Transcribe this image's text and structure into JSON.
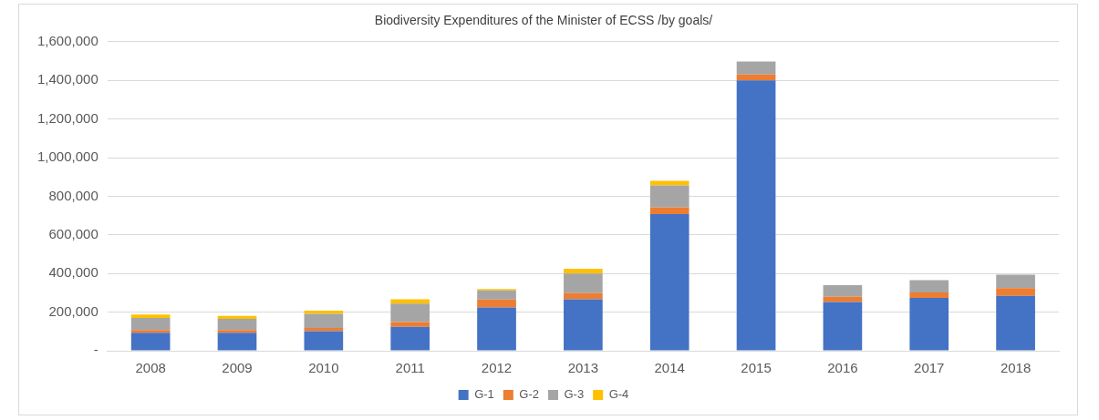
{
  "chart_data": {
    "type": "bar",
    "title": "Biodiversity Expenditures of the Minister of ECSS /by goals/",
    "categories": [
      "2008",
      "2009",
      "2010",
      "2011",
      "2012",
      "2013",
      "2014",
      "2015",
      "2016",
      "2017",
      "2018"
    ],
    "stacked": true,
    "series": [
      {
        "name": "G-1",
        "color": "#4472c4",
        "values": [
          93000,
          93000,
          102000,
          124000,
          224000,
          266000,
          708000,
          1400000,
          252000,
          274000,
          284000
        ]
      },
      {
        "name": "G-2",
        "color": "#ed7d31",
        "values": [
          14000,
          14000,
          16000,
          24000,
          41000,
          32000,
          34000,
          30000,
          28000,
          28000,
          40000
        ]
      },
      {
        "name": "G-3",
        "color": "#a5a5a5",
        "values": [
          63000,
          58000,
          73000,
          96000,
          48000,
          102000,
          114000,
          68000,
          60000,
          64000,
          70000
        ]
      },
      {
        "name": "G-4",
        "color": "#ffc000",
        "values": [
          17000,
          15000,
          16000,
          23000,
          7000,
          24000,
          24000,
          0,
          0,
          0,
          0
        ]
      }
    ],
    "ylim": [
      0,
      1600000
    ],
    "yticks": [
      {
        "value": 0,
        "label": "-"
      },
      {
        "value": 200000,
        "label": "200,000"
      },
      {
        "value": 400000,
        "label": "400,000"
      },
      {
        "value": 600000,
        "label": "600,000"
      },
      {
        "value": 800000,
        "label": "800,000"
      },
      {
        "value": 1000000,
        "label": "1,000,000"
      },
      {
        "value": 1200000,
        "label": "1,200,000"
      },
      {
        "value": 1400000,
        "label": "1,400,000"
      },
      {
        "value": 1600000,
        "label": "1,600,000"
      }
    ],
    "grid": "y",
    "legend": "bottom"
  }
}
